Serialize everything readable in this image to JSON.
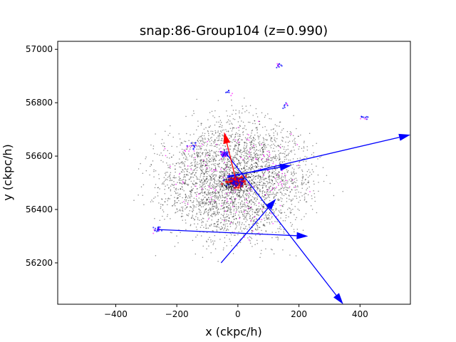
{
  "chart_data": {
    "type": "scatter",
    "title": "snap:86-Group104 (z=0.990)",
    "xlabel": "x (ckpc/h)",
    "ylabel": "y (ckpc/h)",
    "xlim": [
      -590,
      565
    ],
    "ylim": [
      56045,
      57030
    ],
    "xticks": [
      -400,
      -200,
      0,
      200,
      400
    ],
    "yticks": [
      56200,
      56400,
      56600,
      56800,
      57000
    ],
    "grid": false,
    "colors": {
      "dm_particles": "#000000",
      "star_particles": "#ff00ff",
      "gas_particles": "#0000ff",
      "central_particles": "#ff0000",
      "blue_arrows": "#0000ff",
      "red_arrow": "#ff0000"
    },
    "cloud": {
      "center": [
        -10,
        56510
      ],
      "sigma": [
        160,
        150
      ],
      "dm_count": 3400,
      "star_count": 160
    },
    "subhalo_clumps": [
      {
        "x": -45,
        "y": 56608,
        "n": 40
      },
      {
        "x": -265,
        "y": 56325,
        "n": 15
      },
      {
        "x": -150,
        "y": 56637,
        "n": 10
      },
      {
        "x": 130,
        "y": 56940,
        "n": 8
      },
      {
        "x": 415,
        "y": 56745,
        "n": 8
      },
      {
        "x": -30,
        "y": 56835,
        "n": 6
      },
      {
        "x": 160,
        "y": 56790,
        "n": 6
      }
    ],
    "central": {
      "x": -5,
      "y": 56505,
      "n": 90
    },
    "arrows": [
      {
        "x": -265,
        "y": 56325,
        "x2": 230,
        "y2": 56300,
        "color": "blue"
      },
      {
        "x": -55,
        "y": 56200,
        "x2": 125,
        "y2": 56440,
        "color": "blue"
      },
      {
        "x": -35,
        "y": 56605,
        "x2": 345,
        "y2": 56045,
        "color": "blue"
      },
      {
        "x": -35,
        "y": 56520,
        "x2": 565,
        "y2": 56680,
        "color": "blue"
      },
      {
        "x": -35,
        "y": 56525,
        "x2": 175,
        "y2": 56565,
        "color": "blue"
      },
      {
        "x": -5,
        "y": 56505,
        "x2": -45,
        "y2": 56690,
        "color": "red"
      }
    ]
  }
}
